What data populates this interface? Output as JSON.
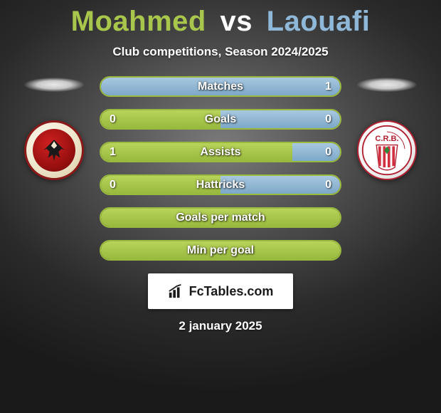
{
  "title": {
    "player1": "Moahmed",
    "vs": "vs",
    "player2": "Laouafi"
  },
  "subtitle": "Club competitions, Season 2024/2025",
  "colors": {
    "player1_accent": "#a8c64b",
    "player2_accent": "#8fb8d8",
    "bar_border": "#9ab93f",
    "bar_fill_left": "#98b83e",
    "bar_fill_right": "#7da8c8",
    "bg_dark": "#1a1a1a",
    "text": "#ffffff"
  },
  "clubs": {
    "left": {
      "name": "Al Ahly",
      "abbrev": "AL AHLY"
    },
    "right": {
      "name": "CR Belouizdad",
      "abbrev": "C.R.B."
    }
  },
  "stats": [
    {
      "label": "Matches",
      "left_val": "",
      "right_val": "1",
      "left_pct": 0,
      "right_pct": 100,
      "show_left": false,
      "show_right": true
    },
    {
      "label": "Goals",
      "left_val": "0",
      "right_val": "0",
      "left_pct": 50,
      "right_pct": 50,
      "show_left": true,
      "show_right": true
    },
    {
      "label": "Assists",
      "left_val": "1",
      "right_val": "0",
      "left_pct": 80,
      "right_pct": 20,
      "show_left": true,
      "show_right": true
    },
    {
      "label": "Hattricks",
      "left_val": "0",
      "right_val": "0",
      "left_pct": 50,
      "right_pct": 50,
      "show_left": true,
      "show_right": true
    },
    {
      "label": "Goals per match",
      "left_val": "",
      "right_val": "",
      "left_pct": 100,
      "right_pct": 0,
      "show_left": false,
      "show_right": false,
      "full_green": true
    },
    {
      "label": "Min per goal",
      "left_val": "",
      "right_val": "",
      "left_pct": 100,
      "right_pct": 0,
      "show_left": false,
      "show_right": false,
      "full_green": true
    }
  ],
  "footer": {
    "brand": "FcTables.com"
  },
  "date": "2 january 2025"
}
